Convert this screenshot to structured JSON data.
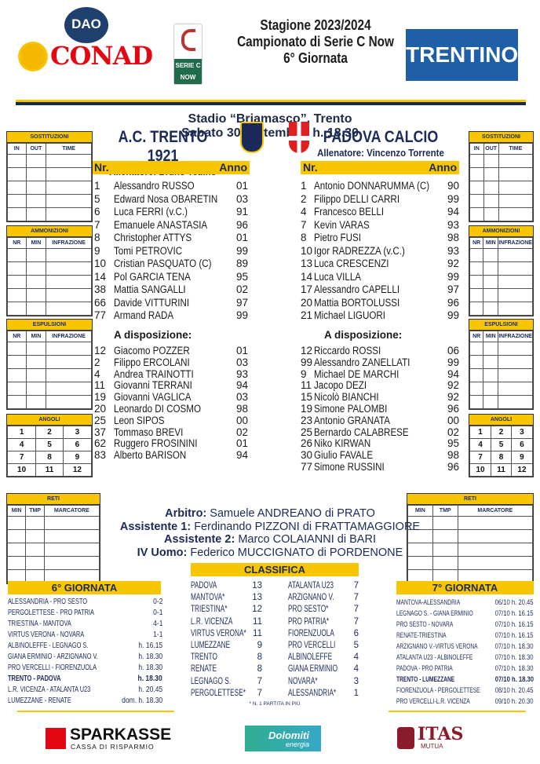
{
  "header": {
    "sponsor_top_left": "CONAD",
    "sponsor_top_left_small": "DAO",
    "league_logo": "SERIE C NOW",
    "title_lines": [
      "Stagione 2023/2024",
      "Campionato di Serie C Now",
      "6° Giornata"
    ],
    "sponsor_top_right": "TRENTINO"
  },
  "venue": {
    "stadium": "Stadio “Briamasco”, Trento",
    "date": "Sabato 30 Settembre, h. 18.30"
  },
  "colors": {
    "yellow": "#f7c600",
    "navy": "#1c2a5a",
    "conad_red": "#e30613",
    "trentino_blue": "#1f5fa8"
  },
  "home": {
    "name": "A.C. TRENTO 1921",
    "coach": "Allenatore: Bruno Tedino",
    "header_nr": "Nr.",
    "header_year": "Anno",
    "starters": [
      [
        "1",
        "Alessandro RUSSO",
        "01"
      ],
      [
        "5",
        "Edward Nosa OBARETIN",
        "03"
      ],
      [
        "6",
        "Luca FERRI (v.C.)",
        "91"
      ],
      [
        "7",
        "Emanuele ANASTASIA",
        "96"
      ],
      [
        "8",
        "Christopher ATTYS",
        "01"
      ],
      [
        "9",
        "Tomi PETROVIC",
        "99"
      ],
      [
        "10",
        "Cristian PASQUATO (C)",
        "89"
      ],
      [
        "14",
        "Pol GARCIA TENA",
        "95"
      ],
      [
        "38",
        "Mattia SANGALLI",
        "02"
      ],
      [
        "66",
        "Davide VITTURINI",
        "97"
      ],
      [
        "77",
        "Armand RADA",
        "99"
      ]
    ],
    "bench_label": "A disposizione:",
    "bench": [
      [
        "12",
        "Giacomo POZZER",
        "01"
      ],
      [
        "2",
        "Filippo ERCOLANI",
        "03"
      ],
      [
        "4",
        "Andrea TRAINOTTI",
        "93"
      ],
      [
        "11",
        "Giovanni TERRANI",
        "94"
      ],
      [
        "19",
        "Giovanni VAGLICA",
        "03"
      ],
      [
        "20",
        "Leonardo DI COSMO",
        "98"
      ],
      [
        "25",
        "Leon SIPOS",
        "00"
      ],
      [
        "37",
        "Tommaso BREVI",
        "02"
      ],
      [
        "62",
        "Ruggero FROSININI",
        "01"
      ],
      [
        "83",
        "Alberto BARISON",
        "94"
      ]
    ]
  },
  "away": {
    "name": "PADOVA CALCIO",
    "coach": "Allenatore: Vincenzo Torrente",
    "header_nr": "Nr.",
    "header_year": "Anno",
    "starters": [
      [
        "1",
        "Antonio DONNARUMMA (C)",
        "90"
      ],
      [
        "2",
        "Filippo DELLI CARRI",
        "99"
      ],
      [
        "4",
        "Francesco BELLI",
        "94"
      ],
      [
        "7",
        "Kevin VARAS",
        "93"
      ],
      [
        "8",
        "Pietro FUSI",
        "98"
      ],
      [
        "10",
        "Igor RADREZZA (v.C.)",
        "93"
      ],
      [
        "13",
        "Luca CRESCENZI",
        "92"
      ],
      [
        "14",
        "Luca VILLA",
        "99"
      ],
      [
        "17",
        "Alessandro CAPELLI",
        "97"
      ],
      [
        "20",
        "Mattia BORTOLUSSI",
        "96"
      ],
      [
        "21",
        "Michael LIGUORI",
        "99"
      ]
    ],
    "bench_label": "A disposizione:",
    "bench": [
      [
        "12",
        "Riccardo ROSSI",
        "06"
      ],
      [
        "99",
        "Alessandro ZANELLATI",
        "99"
      ],
      [
        "9",
        "Michael DE MARCHI",
        "94"
      ],
      [
        "11",
        "Jacopo DEZI",
        "92"
      ],
      [
        "15",
        "Nicolò BIANCHI",
        "92"
      ],
      [
        "19",
        "Simone PALOMBI",
        "96"
      ],
      [
        "23",
        "Antonio GRANATA",
        "00"
      ],
      [
        "25",
        "Bernardo CALABRESE",
        "02"
      ],
      [
        "26",
        "Niko KIRWAN",
        "95"
      ],
      [
        "30",
        "Giulio FAVALE",
        "98"
      ],
      [
        "77",
        "Simone RUSSINI",
        "96"
      ]
    ]
  },
  "forms": {
    "sostituzioni": {
      "title": "SOSTITUZIONI",
      "cols": [
        "IN",
        "OUT",
        "TIME"
      ]
    },
    "ammonizioni": {
      "title": "AMMONIZIONI",
      "cols": [
        "NR",
        "MIN",
        "INFRAZIONE"
      ]
    },
    "espulsioni": {
      "title": "ESPULSIONI",
      "cols": [
        "NR",
        "MIN",
        "INFRAZIONE"
      ]
    },
    "angoli": {
      "title": "ANGOLI",
      "cells": [
        "1",
        "2",
        "3",
        "4",
        "5",
        "6",
        "7",
        "8",
        "9",
        "10",
        "11",
        "12"
      ]
    },
    "reti": {
      "title": "RETI",
      "cols": [
        "MIN",
        "TMP",
        "MARCATORE"
      ]
    }
  },
  "officials": [
    {
      "role": "Arbitro:",
      "name": "Samuele ANDREANO di PRATO"
    },
    {
      "role": "Assistente 1:",
      "name": "Ferdinando PIZZONI di FRATTAMAGGIORE"
    },
    {
      "role": "Assistente 2:",
      "name": "Marco COLAIANNI di BARI"
    },
    {
      "role": "IV Uomo:",
      "name": "Federico MUCCIGNATO di PORDENONE"
    }
  ],
  "round6": {
    "title": "6° GIORNATA",
    "matches": [
      [
        "ALESSANDRIA - PRO SESTO",
        "0-2"
      ],
      [
        "PERGOLETTESE - PRO PATRIA",
        "0-1"
      ],
      [
        "TRIESTINA - MANTOVA",
        "4-1"
      ],
      [
        "VIRTUS VERONA - NOVARA",
        "1-1"
      ],
      [
        "ALBINOLEFFE - LEGNAGO S.",
        "h. 16.15"
      ],
      [
        "GIANA ERMINIO - ARZIGNANO V.",
        "h. 18.30"
      ],
      [
        "PRO VERCELLI - FIORENZUOLA",
        "h. 18.30"
      ],
      [
        "TRENTO - PADOVA",
        "h. 18.30"
      ],
      [
        "L.R. VICENZA - ATALANTA U23",
        "h. 20.45"
      ],
      [
        "LUMEZZANE - RENATE",
        "dom. h. 18.30"
      ]
    ]
  },
  "standings": {
    "title": "CLASSIFICA",
    "col1": [
      [
        "PADOVA",
        "13"
      ],
      [
        "MANTOVA*",
        "13"
      ],
      [
        "TRIESTINA*",
        "12"
      ],
      [
        "L.R. VICENZA",
        "11"
      ],
      [
        "VIRTUS VERONA*",
        "11"
      ],
      [
        "LUMEZZANE",
        "9"
      ],
      [
        "TRENTO",
        "8"
      ],
      [
        "RENATE",
        "8"
      ],
      [
        "LEGNAGO S.",
        "7"
      ],
      [
        "PERGOLETTESE*",
        "7"
      ]
    ],
    "col2": [
      [
        "ATALANTA U23",
        "7"
      ],
      [
        "ARZIGNANO V.",
        "7"
      ],
      [
        "PRO SESTO*",
        "7"
      ],
      [
        "PRO PATRIA*",
        "7"
      ],
      [
        "FIORENZUOLA",
        "6"
      ],
      [
        "PRO VERCELLI",
        "5"
      ],
      [
        "ALBINOLEFFE",
        "4"
      ],
      [
        "GIANA ERMINIO",
        "4"
      ],
      [
        "NOVARA*",
        "3"
      ],
      [
        "ALESSANDRIA*",
        "1"
      ]
    ],
    "note": "* N. 1 PARTITA IN PIÙ"
  },
  "round7": {
    "title": "7° GIORNATA",
    "matches": [
      [
        "MANTOVA-ALESSANDRIA",
        "06/10 h. 20.45"
      ],
      [
        "LEGNAGO S. - GIANA ERMINIO",
        "07/10 h. 16.15"
      ],
      [
        "PRO SESTO - NOVARA",
        "07/10 h. 16.15"
      ],
      [
        "RENATE-TRIESTINA",
        "07/10 h. 16.15"
      ],
      [
        "ARZIGNANO V.-VIRTUS VERONA",
        "07/10 h. 18.30"
      ],
      [
        "ATALANTA U23 - ALBINOLEFFE",
        "07/10 h. 18.30"
      ],
      [
        "PADOVA - PRO PATRIA",
        "07/10 h. 18.30"
      ],
      [
        "TRENTO - LUMEZZANE",
        "07/10 h. 18.30"
      ],
      [
        "FIORENZUOLA - PERGOLETTESE",
        "08/10 h. 20.45"
      ],
      [
        "PRO VERCELLI-L.R. VICENZA",
        "09/10 h. 20.30"
      ]
    ]
  },
  "sponsors": {
    "sparkasse": "SPARKASSE",
    "sparkasse_sub": "CASSA DI RISPARMIO",
    "dolomiti": "Dolomiti",
    "dolomiti_sub": "energia",
    "itas": "ITAS",
    "itas_sub": "MUTUA"
  }
}
